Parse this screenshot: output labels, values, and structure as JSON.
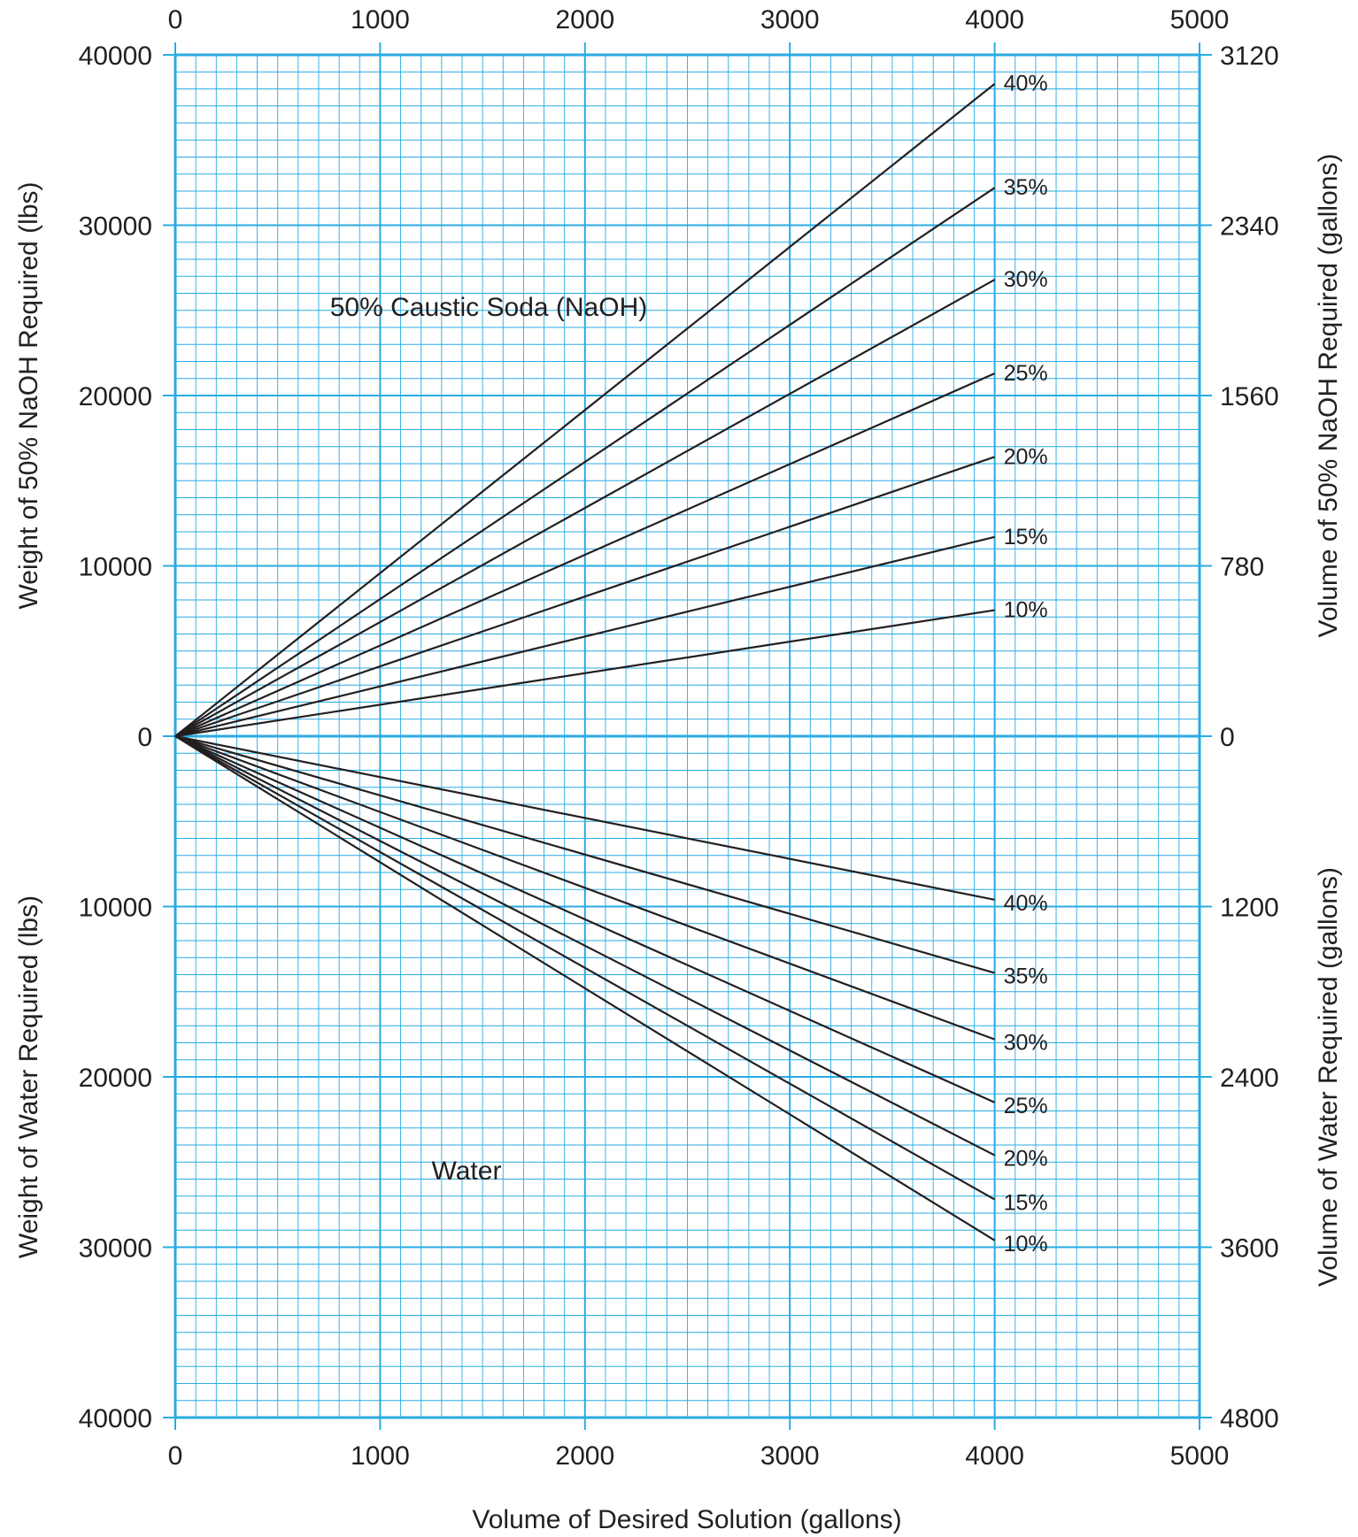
{
  "chart_data": {
    "type": "line",
    "top_axis": {
      "ticks": [
        "0",
        "1000",
        "2000",
        "3000",
        "4000",
        "5000"
      ]
    },
    "bottom_axis": {
      "label": "Volume of Desired Solution (gallons)",
      "ticks": [
        "0",
        "1000",
        "2000",
        "3000",
        "4000",
        "5000"
      ],
      "range": [
        0,
        5000
      ]
    },
    "left_axis_upper": {
      "label": "Weight of 50% NaOH Required (lbs)",
      "ticks": [
        "40000",
        "30000",
        "20000",
        "10000"
      ],
      "range": [
        0,
        40000
      ]
    },
    "zero_label_left": "0",
    "left_axis_lower": {
      "label": "Weight of Water Required (lbs)",
      "ticks": [
        "10000",
        "20000",
        "30000",
        "40000"
      ],
      "range": [
        0,
        40000
      ]
    },
    "right_axis_upper": {
      "label": "Volume of 50% NaOH Required (gallons)",
      "ticks": [
        "3120",
        "2340",
        "1560",
        "780"
      ],
      "range": [
        0,
        3120
      ]
    },
    "zero_label_right": "0",
    "right_axis_lower": {
      "label": "Volume of Water Required (gallons)",
      "ticks": [
        "1200",
        "2400",
        "3600",
        "4800"
      ],
      "range": [
        0,
        4800
      ]
    },
    "grid": true,
    "region_labels": {
      "naoh": "50% Caustic Soda (NaOH)",
      "water": "Water"
    },
    "naoh_series": [
      {
        "name": "40%",
        "x": [
          0,
          4000
        ],
        "y": [
          0,
          38300
        ]
      },
      {
        "name": "35%",
        "x": [
          0,
          4000
        ],
        "y": [
          0,
          32200
        ]
      },
      {
        "name": "30%",
        "x": [
          0,
          4000
        ],
        "y": [
          0,
          26800
        ]
      },
      {
        "name": "25%",
        "x": [
          0,
          4000
        ],
        "y": [
          0,
          21300
        ]
      },
      {
        "name": "20%",
        "x": [
          0,
          4000
        ],
        "y": [
          0,
          16400
        ]
      },
      {
        "name": "15%",
        "x": [
          0,
          4000
        ],
        "y": [
          0,
          11700
        ]
      },
      {
        "name": "10%",
        "x": [
          0,
          4000
        ],
        "y": [
          0,
          7400
        ]
      }
    ],
    "water_series": [
      {
        "name": "40%",
        "x": [
          0,
          4000
        ],
        "y": [
          0,
          9600
        ]
      },
      {
        "name": "35%",
        "x": [
          0,
          4000
        ],
        "y": [
          0,
          13900
        ]
      },
      {
        "name": "30%",
        "x": [
          0,
          4000
        ],
        "y": [
          0,
          17800
        ]
      },
      {
        "name": "25%",
        "x": [
          0,
          4000
        ],
        "y": [
          0,
          21500
        ]
      },
      {
        "name": "20%",
        "x": [
          0,
          4000
        ],
        "y": [
          0,
          24600
        ]
      },
      {
        "name": "15%",
        "x": [
          0,
          4000
        ],
        "y": [
          0,
          27200
        ]
      },
      {
        "name": "10%",
        "x": [
          0,
          4000
        ],
        "y": [
          0,
          29600
        ]
      }
    ],
    "colors": {
      "grid": "#29abe2",
      "lines": "#231f20",
      "text": "#231f20"
    }
  }
}
